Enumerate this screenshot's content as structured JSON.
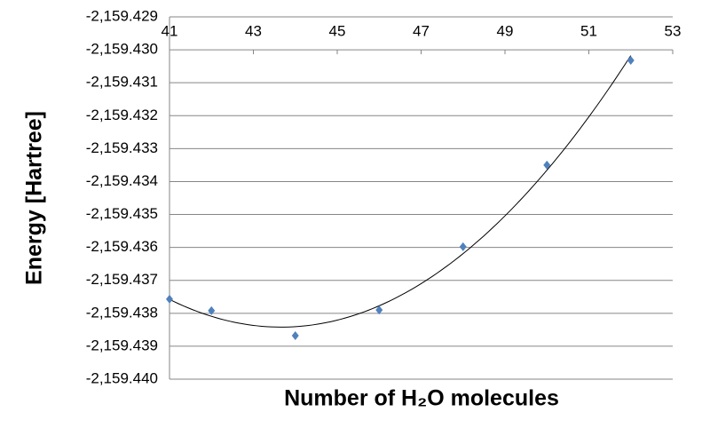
{
  "chart_data": {
    "type": "scatter",
    "xlabel": "Number of H₂O molecules",
    "ylabel": "Energy [Hartree]",
    "series": [
      {
        "color": "#4f81bd",
        "x": [
          41,
          42,
          44,
          46,
          48,
          50,
          52
        ],
        "values": [
          -2159.43757,
          -2159.43792,
          -2159.43868,
          -2159.4379,
          -2159.43598,
          -2159.4335,
          -2159.43032
        ]
      }
    ],
    "trendline": "polynomial",
    "xlim": [
      41,
      53
    ],
    "xticks": [
      41,
      43,
      45,
      47,
      49,
      51,
      53
    ],
    "ylim": [
      -2159.44,
      -2159.429
    ],
    "yticks": [
      {
        "value": -2159.429,
        "label": "-2,159.429"
      },
      {
        "value": -2159.43,
        "label": "-2,159.430"
      },
      {
        "value": -2159.431,
        "label": "-2,159.431"
      },
      {
        "value": -2159.432,
        "label": "-2,159.432"
      },
      {
        "value": -2159.433,
        "label": "-2,159.433"
      },
      {
        "value": -2159.434,
        "label": "-2,159.434"
      },
      {
        "value": -2159.435,
        "label": "-2,159.435"
      },
      {
        "value": -2159.436,
        "label": "-2,159.436"
      },
      {
        "value": -2159.437,
        "label": "-2,159.437"
      },
      {
        "value": -2159.438,
        "label": "-2,159.438"
      },
      {
        "value": -2159.439,
        "label": "-2,159.439"
      },
      {
        "value": -2159.44,
        "label": "-2,159.440"
      }
    ],
    "grid": true
  }
}
